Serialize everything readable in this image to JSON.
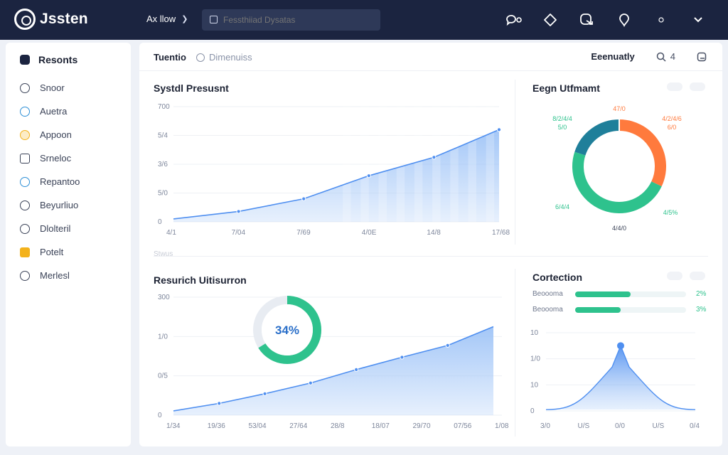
{
  "app": {
    "name": "Jssten"
  },
  "nav": {
    "label": "Ax llow",
    "chevron": "❯"
  },
  "search": {
    "placeholder": "Fessthiiad Dysatas"
  },
  "top_icons": [
    "chat-icon",
    "diamond-icon",
    "share-icon",
    "bell-icon",
    "chevron-down-icon"
  ],
  "sidebar": {
    "header": "Resonts",
    "items": [
      {
        "label": "Snoor",
        "icon": "user-icon",
        "color": "#3a4257"
      },
      {
        "label": "Auetra",
        "icon": "target-icon",
        "color": "#2d8fd6"
      },
      {
        "label": "Appoon",
        "icon": "pin-icon",
        "color": "#f3b21b"
      },
      {
        "label": "Srneloc",
        "icon": "box-icon",
        "color": "#3a4257"
      },
      {
        "label": "Repantoo",
        "icon": "clock-icon",
        "color": "#2d8fd6"
      },
      {
        "label": "Beyurliuo",
        "icon": "shield-icon",
        "color": "#3a4257"
      },
      {
        "label": "Dlolteril",
        "icon": "minus-circle-icon",
        "color": "#3a4257"
      },
      {
        "label": "Potelt",
        "icon": "folder-icon",
        "color": "#f3b21b"
      },
      {
        "label": "Merlesl",
        "icon": "chat-icon",
        "color": "#3a4257"
      }
    ]
  },
  "toolbar": {
    "tab_active": "Tuentio",
    "tab_inactive": "Dimenuiss",
    "filter": "Eeenuatly",
    "zoom": "4"
  },
  "panel1": {
    "title": "Systdl Presusnt",
    "yticks": [
      "700",
      "5/4",
      "3/6",
      "5/0",
      "0"
    ],
    "xticks": [
      "4/1",
      "7/04",
      "7/69",
      "4/0E",
      "14/8",
      "17/68"
    ],
    "footnote": "Stwus",
    "chart_data": {
      "type": "area",
      "x": [
        "4/1",
        "7/04",
        "7/69",
        "4/0E",
        "14/8",
        "17/68"
      ],
      "series": [
        {
          "values": [
            5,
            18,
            40,
            80,
            112,
            160
          ]
        }
      ],
      "ylim": [
        0,
        200
      ]
    }
  },
  "panel2": {
    "title": "Eegn Utfmamt",
    "labels": {
      "top": "47/0",
      "tl_a": "8/2/4/4",
      "tl_b": "5/0",
      "tr_a": "4/2/4/6",
      "tr_b": "6/0",
      "bl": "6/4/4",
      "br": "4/5%",
      "bottom": "4/4/0"
    },
    "chart_data": {
      "type": "pie",
      "slices": [
        {
          "value": 32,
          "color": "#ff7a3d"
        },
        {
          "value": 48,
          "color": "#2ec28d"
        },
        {
          "value": 20,
          "color": "#1f7f9a"
        }
      ]
    }
  },
  "panel3": {
    "title": "Resurich Uitisurron",
    "progress_label": "34%",
    "progress": 0.66,
    "yticks": [
      "300",
      "1/0",
      "0/5",
      "0"
    ],
    "xticks": [
      "1/34",
      "19/36",
      "53/04",
      "27/64",
      "28/8",
      "18/07",
      "29/70",
      "07/56",
      "1/08"
    ],
    "chart_data": {
      "type": "area",
      "x": [
        "1/34",
        "19/36",
        "53/04",
        "27/64",
        "28/8",
        "18/07",
        "29/70",
        "07/56"
      ],
      "series": [
        {
          "values": [
            8,
            22,
            40,
            60,
            85,
            108,
            130,
            165
          ]
        }
      ],
      "ylim": [
        0,
        220
      ]
    }
  },
  "panel4": {
    "title": "Cortection",
    "rows": [
      {
        "label": "Beoooma",
        "fill": 0.5,
        "pct": "2%"
      },
      {
        "label": "Beoooma",
        "fill": 0.41,
        "pct": "3%"
      }
    ],
    "yticks": [
      "10",
      "1/0",
      "10",
      "0"
    ],
    "xticks": [
      "3/0",
      "U/S",
      "0/0",
      "U/S",
      "0/4"
    ],
    "chart_data": {
      "type": "area",
      "x": [
        "3/0",
        "U/S",
        "0/0",
        "U/S",
        "0/4"
      ],
      "series": [
        {
          "values": [
            2,
            18,
            100,
            18,
            2
          ]
        }
      ],
      "ylim": [
        0,
        120
      ]
    }
  },
  "colors": {
    "accent": "#4f8ff0",
    "area": "#9fc4f7",
    "green": "#2ec28d",
    "orange": "#ff7a3d",
    "teal": "#1f7f9a",
    "topbar": "#1b2440"
  }
}
